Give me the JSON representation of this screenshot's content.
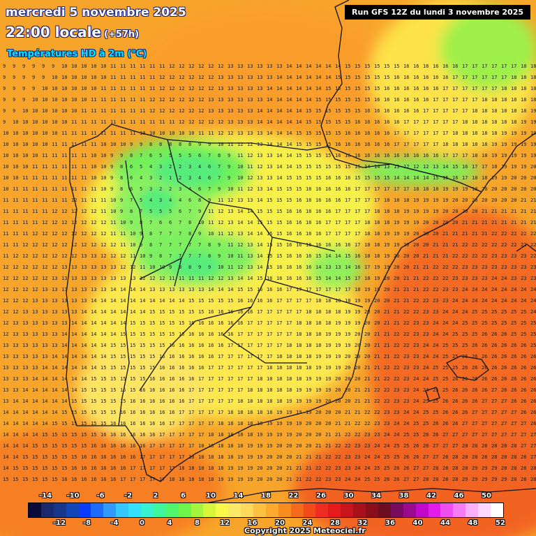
{
  "header": {
    "date": "mercredi 5 novembre 2025",
    "time": "22:00 locale",
    "lead": "(+57h)",
    "variable": "Températures HD à 2m (°C)",
    "run": "Run GFS 12Z du lundi 3 novembre 2025"
  },
  "legend": {
    "top_labels": [
      "-14",
      "-10",
      "-6",
      "-2",
      "2",
      "6",
      "10",
      "14",
      "18",
      "22",
      "26",
      "30",
      "34",
      "38",
      "42",
      "46",
      "50"
    ],
    "bottom_labels": [
      "-12",
      "-8",
      "-4",
      "0",
      "4",
      "8",
      "12",
      "16",
      "20",
      "24",
      "28",
      "32",
      "36",
      "40",
      "44",
      "48",
      "52"
    ],
    "colors": [
      "#0b0b3b",
      "#1a2a6c",
      "#17378f",
      "#1046b8",
      "#0a3cff",
      "#1e6bff",
      "#2f9bff",
      "#35c7ff",
      "#35e0ff",
      "#36f2d2",
      "#3df59a",
      "#4ff56b",
      "#6ef54a",
      "#a5f53c",
      "#d8f53a",
      "#f8f84a",
      "#fbe869",
      "#fdd85a",
      "#fdc040",
      "#fca92e",
      "#f98c1e",
      "#f56a1a",
      "#f34a1c",
      "#f02b20",
      "#e61a1a",
      "#c8141a",
      "#a8111a",
      "#8a0e1a",
      "#6e0c22",
      "#7a0a5e",
      "#9a0a8e",
      "#c10ac8",
      "#e21de8",
      "#f04df0",
      "#f57cf5",
      "#fab0fa",
      "#fdd8fd",
      "#ffffff"
    ]
  },
  "copyright": "Copyright 2025 Meteociel.fr"
}
